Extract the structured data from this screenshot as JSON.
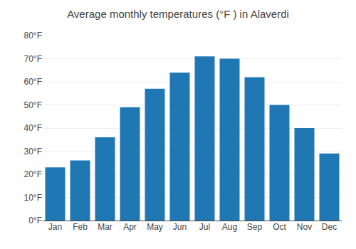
{
  "chart_data": {
    "type": "bar",
    "title": "Average monthly temperatures (°F ) in Alaverdi",
    "categories": [
      "Jan",
      "Feb",
      "Mar",
      "Apr",
      "May",
      "Jun",
      "Jul",
      "Aug",
      "Sep",
      "Oct",
      "Nov",
      "Dec"
    ],
    "values": [
      23,
      26,
      36,
      49,
      57,
      64,
      71,
      70,
      62,
      50,
      40,
      29
    ],
    "ylim": [
      0,
      80
    ],
    "yticks": [
      {
        "value": 0,
        "label": "0°F"
      },
      {
        "value": 10,
        "label": "10°F"
      },
      {
        "value": 20,
        "label": "20°F"
      },
      {
        "value": 30,
        "label": "30°F"
      },
      {
        "value": 40,
        "label": "40°F"
      },
      {
        "value": 50,
        "label": "50°F"
      },
      {
        "value": 60,
        "label": "60°F"
      },
      {
        "value": 70,
        "label": "70°F"
      },
      {
        "value": 80,
        "label": "80°F"
      }
    ],
    "grid": true
  }
}
